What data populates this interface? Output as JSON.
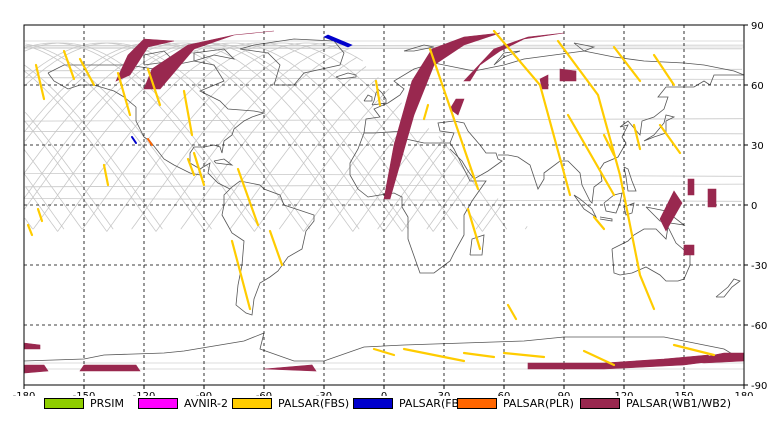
{
  "chart_data": {
    "type": "map",
    "projection": "equirectangular",
    "xlim": [
      -180,
      180
    ],
    "ylim": [
      -90,
      90
    ],
    "x_ticks": [
      -180,
      -150,
      -120,
      -90,
      -60,
      -30,
      0,
      30,
      60,
      90,
      120,
      150,
      180
    ],
    "y_ticks": [
      90,
      60,
      30,
      0,
      -30,
      -60,
      -90
    ],
    "grid": "dashed",
    "legend": [
      {
        "label": "PRSIM",
        "color": "#8fce00"
      },
      {
        "label": "AVNIR-2",
        "color": "#ff00ff"
      },
      {
        "label": "PALSAR(FBS)",
        "color": "#ffcc00"
      },
      {
        "label": "PALSAR(FBD)",
        "color": "#0000cc"
      },
      {
        "label": "PALSAR(PLR)",
        "color": "#ff6600"
      },
      {
        "label": "PALSAR(WB1/WB2)",
        "color": "#99284f"
      }
    ],
    "swaths": {
      "WB": [
        [
          [
            -127,
            65
          ],
          [
            -118,
            79
          ],
          [
            -105,
            82
          ],
          [
            -120,
            83
          ],
          [
            -128,
            75
          ],
          [
            -134,
            62
          ]
        ],
        [
          [
            -112,
            58
          ],
          [
            -95,
            78
          ],
          [
            -75,
            85
          ],
          [
            -55,
            87
          ],
          [
            -75,
            85
          ],
          [
            -98,
            80
          ],
          [
            -116,
            68
          ],
          [
            -120,
            58
          ]
        ],
        [
          [
            3,
            3
          ],
          [
            15,
            45
          ],
          [
            25,
            70
          ],
          [
            40,
            80
          ],
          [
            58,
            86
          ],
          [
            40,
            84
          ],
          [
            24,
            78
          ],
          [
            14,
            62
          ],
          [
            5,
            30
          ],
          [
            0,
            3
          ]
        ],
        [
          [
            40,
            62
          ],
          [
            55,
            78
          ],
          [
            72,
            84
          ],
          [
            90,
            86
          ],
          [
            70,
            83
          ],
          [
            58,
            77
          ],
          [
            48,
            70
          ],
          [
            43,
            62
          ]
        ],
        [
          [
            33,
            48
          ],
          [
            36,
            53
          ],
          [
            40,
            53
          ],
          [
            37,
            45
          ]
        ],
        [
          [
            78,
            63
          ],
          [
            82,
            65
          ],
          [
            82,
            58
          ],
          [
            79,
            58
          ]
        ],
        [
          [
            88,
            68
          ],
          [
            96,
            67
          ],
          [
            96,
            62
          ],
          [
            88,
            62
          ]
        ],
        [
          [
            138,
            -7
          ],
          [
            145,
            7
          ],
          [
            149,
            1
          ],
          [
            141,
            -13
          ]
        ],
        [
          [
            150,
            -25
          ],
          [
            155,
            -25
          ],
          [
            155,
            -20
          ],
          [
            150,
            -20
          ]
        ],
        [
          [
            152,
            13
          ],
          [
            155,
            13
          ],
          [
            155,
            5
          ],
          [
            152,
            5
          ]
        ],
        [
          [
            162,
            8
          ],
          [
            166,
            8
          ],
          [
            166,
            -1
          ],
          [
            162,
            -1
          ]
        ],
        [
          [
            -180,
            -69
          ],
          [
            -172,
            -70
          ],
          [
            -172,
            -72
          ],
          [
            -180,
            -72
          ]
        ],
        [
          [
            -180,
            -80
          ],
          [
            -170,
            -80
          ],
          [
            -168,
            -83
          ],
          [
            -180,
            -84
          ]
        ],
        [
          [
            -150,
            -80
          ],
          [
            -124,
            -80
          ],
          [
            -122,
            -83
          ],
          [
            -152,
            -83
          ]
        ],
        [
          [
            -60,
            -82
          ],
          [
            -34,
            -83
          ],
          [
            -36,
            -80
          ],
          0
        ],
        [
          [
            72,
            -82
          ],
          [
            110,
            -82
          ],
          [
            150,
            -80
          ],
          [
            165,
            -78
          ],
          [
            162,
            -75
          ],
          [
            140,
            -77
          ],
          [
            110,
            -79
          ],
          [
            72,
            -79
          ]
        ],
        [
          [
            150,
            -78
          ],
          [
            170,
            -74
          ],
          [
            180,
            -74
          ],
          [
            180,
            -78
          ],
          [
            160,
            -79
          ]
        ]
      ],
      "FBS": [
        [
          [
            -174,
            70
          ],
          [
            -170,
            53
          ]
        ],
        [
          [
            -160,
            77
          ],
          [
            -155,
            63
          ]
        ],
        [
          [
            -152,
            73
          ],
          [
            -145,
            60
          ]
        ],
        [
          [
            -133,
            66
          ],
          [
            -127,
            45
          ]
        ],
        [
          [
            -118,
            68
          ],
          [
            -112,
            50
          ]
        ],
        [
          [
            -100,
            57
          ],
          [
            -96,
            35
          ]
        ],
        [
          [
            -95,
            26
          ],
          [
            -90,
            10
          ]
        ],
        [
          [
            -73,
            18
          ],
          [
            -63,
            -10
          ]
        ],
        [
          [
            -57,
            -13
          ],
          [
            -51,
            -30
          ]
        ],
        [
          [
            -76,
            -18
          ],
          [
            -67,
            -52
          ]
        ],
        [
          [
            -98,
            23
          ],
          [
            -95,
            15
          ]
        ],
        [
          [
            -140,
            20
          ],
          [
            -138,
            10
          ]
        ],
        [
          [
            -173,
            -2
          ],
          [
            -171,
            -8
          ]
        ],
        [
          [
            -178,
            -10
          ],
          [
            -176,
            -15
          ]
        ],
        [
          [
            20,
            43
          ],
          [
            22,
            50
          ]
        ],
        [
          [
            23,
            78
          ],
          [
            47,
            8
          ]
        ],
        [
          [
            42,
            -2
          ],
          [
            48,
            -22
          ]
        ],
        [
          [
            55,
            87
          ],
          [
            78,
            60
          ],
          [
            93,
            5
          ]
        ],
        [
          [
            62,
            -50
          ],
          [
            66,
            -57
          ]
        ],
        [
          [
            87,
            82
          ],
          [
            107,
            55
          ],
          [
            118,
            15
          ],
          [
            128,
            -35
          ],
          [
            135,
            -52
          ]
        ],
        [
          [
            92,
            45
          ],
          [
            115,
            5
          ]
        ],
        [
          [
            115,
            79
          ],
          [
            128,
            62
          ]
        ],
        [
          [
            135,
            75
          ],
          [
            145,
            60
          ]
        ],
        [
          [
            138,
            40
          ],
          [
            148,
            26
          ]
        ],
        [
          [
            110,
            35
          ],
          [
            115,
            25
          ]
        ],
        [
          [
            -4,
            62
          ],
          [
            -2,
            50
          ]
        ],
        [
          [
            105,
            -6
          ],
          [
            110,
            -12
          ]
        ],
        [
          [
            125,
            40
          ],
          [
            128,
            28
          ]
        ],
        [
          [
            10,
            -72
          ],
          [
            40,
            -78
          ]
        ],
        [
          [
            40,
            -74
          ],
          [
            55,
            -76
          ]
        ],
        [
          [
            60,
            -74
          ],
          [
            80,
            -76
          ]
        ],
        [
          [
            100,
            -73
          ],
          [
            115,
            -80
          ]
        ],
        [
          [
            145,
            -70
          ],
          [
            165,
            -75
          ]
        ],
        [
          [
            -5,
            -72
          ],
          [
            5,
            -75
          ]
        ]
      ],
      "FBD": [
        [
          [
            -30,
            84
          ],
          [
            -18,
            79
          ],
          [
            -16,
            80
          ],
          [
            -28,
            85
          ]
        ],
        [
          [
            -126,
            34
          ],
          [
            -124,
            31
          ]
        ]
      ],
      "PLR": [
        [
          [
            -118,
            33
          ],
          [
            -116,
            30
          ]
        ]
      ]
    }
  },
  "legend_labels": [
    "PRSIM",
    "AVNIR-2",
    "PALSAR(FBS)",
    "PALSAR(FBD)",
    "PALSAR(PLR)",
    "PALSAR(WB1/WB2)"
  ]
}
